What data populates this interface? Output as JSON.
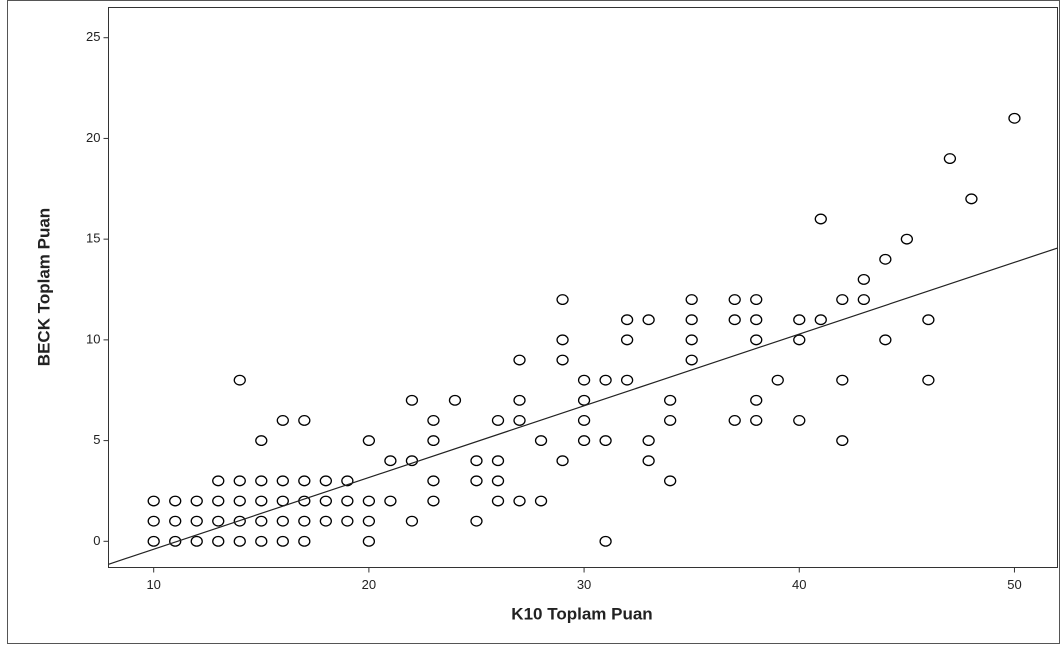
{
  "chart_data": {
    "type": "scatter",
    "x_label": "K10 Toplam Puan",
    "y_label": "BECK Toplam Puan",
    "xlim": [
      7.9,
      52
    ],
    "ylim": [
      -1.3,
      26.5
    ],
    "xticks": [
      10,
      20,
      30,
      40,
      50
    ],
    "yticks": [
      0,
      5,
      10,
      15,
      20,
      25
    ],
    "color": "#000000",
    "series": [
      {
        "x": [
          10,
          10,
          10,
          11,
          11,
          11,
          12,
          12,
          12,
          13,
          13,
          13,
          13,
          14,
          14,
          14,
          14,
          14,
          15,
          15,
          15,
          15,
          15,
          16,
          16,
          16,
          16,
          16,
          17,
          17,
          17,
          17,
          17,
          18,
          18,
          18,
          19,
          19,
          19,
          20,
          20,
          20,
          20,
          21,
          21,
          22,
          22,
          22,
          23,
          23,
          23,
          23,
          24,
          25,
          25,
          25,
          26,
          26,
          26,
          26,
          27,
          27,
          27,
          27,
          28,
          28,
          29,
          29,
          29,
          29,
          30,
          30,
          30,
          30,
          31,
          31,
          31,
          32,
          32,
          32,
          33,
          33,
          33,
          34,
          34,
          34,
          35,
          35,
          35,
          35,
          37,
          37,
          37,
          38,
          38,
          38,
          38,
          38,
          39,
          40,
          40,
          40,
          41,
          41,
          42,
          42,
          42,
          43,
          43,
          44,
          44,
          45,
          46,
          46,
          47,
          48,
          50
        ],
        "y": [
          0,
          1,
          2,
          0,
          1,
          2,
          0,
          1,
          2,
          0,
          1,
          2,
          3,
          0,
          1,
          2,
          3,
          8,
          0,
          1,
          2,
          3,
          5,
          0,
          1,
          2,
          3,
          6,
          0,
          1,
          2,
          3,
          6,
          1,
          2,
          3,
          1,
          2,
          3,
          0,
          1,
          2,
          5,
          2,
          4,
          1,
          4,
          7,
          2,
          3,
          5,
          6,
          7,
          1,
          3,
          4,
          2,
          3,
          4,
          6,
          2,
          6,
          7,
          9,
          2,
          5,
          4,
          9,
          10,
          12,
          5,
          6,
          7,
          8,
          0,
          5,
          8,
          8,
          10,
          11,
          4,
          5,
          11,
          3,
          6,
          7,
          9,
          10,
          11,
          12,
          6,
          11,
          12,
          6,
          7,
          10,
          11,
          12,
          8,
          6,
          10,
          11,
          11,
          16,
          5,
          8,
          12,
          12,
          13,
          10,
          14,
          15,
          8,
          11,
          19,
          17,
          21
        ]
      }
    ],
    "fit_line": {
      "x": [
        7.9,
        52
      ],
      "y": [
        -1.14,
        14.56
      ]
    }
  }
}
